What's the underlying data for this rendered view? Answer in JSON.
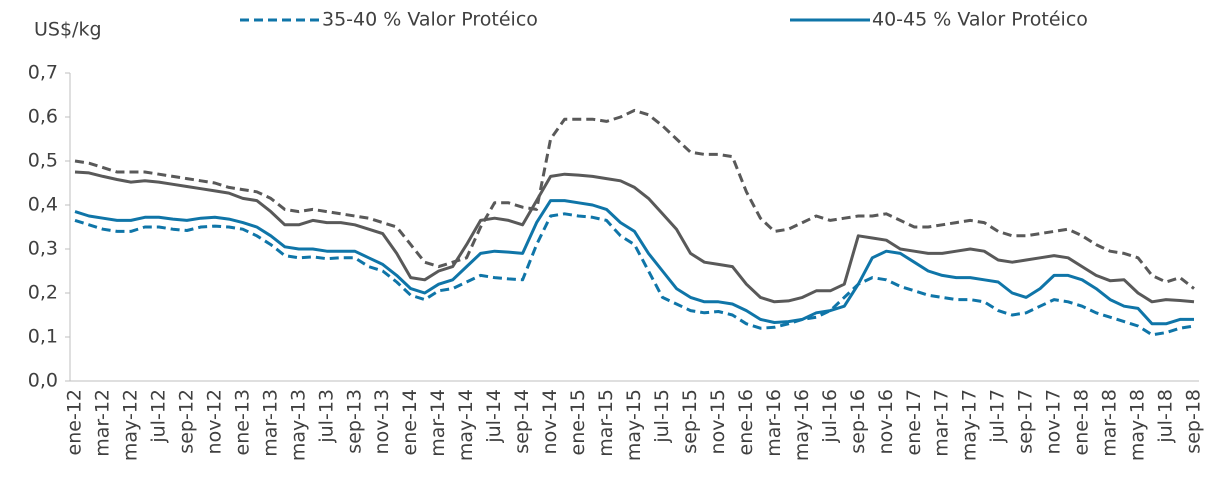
{
  "chart_data": {
    "type": "line",
    "y_label": "US$/kg",
    "legend": "top",
    "categories": [
      "ene-12",
      null,
      "mar-12",
      null,
      "may-12",
      null,
      "jul-12",
      null,
      "sep-12",
      null,
      "nov-12",
      null,
      "ene-13",
      null,
      "mar-13",
      null,
      "may-13",
      null,
      "jul-13",
      null,
      "sep-13",
      null,
      "nov-13",
      null,
      "ene-14",
      null,
      "mar-14",
      null,
      "may-14",
      null,
      "jul-14",
      null,
      "sep-14",
      null,
      "nov-14",
      null,
      "ene-15",
      null,
      "mar-15",
      null,
      "may-15",
      null,
      "jul-15",
      null,
      "sep-15",
      null,
      "nov-15",
      null,
      "ene-16",
      null,
      "mar-16",
      null,
      "may-16",
      null,
      "jul-16",
      null,
      "sep-16",
      null,
      "nov-16",
      null,
      "ene-17",
      null,
      "mar-17",
      null,
      "may-17",
      null,
      "jul-17",
      null,
      "sep-17",
      null,
      "nov-17",
      null,
      "ene-18",
      null,
      "mar-18",
      null,
      "may-18",
      null,
      "jul-18",
      null,
      "sep-18"
    ],
    "series": [
      {
        "color": "#595959",
        "dashed": true,
        "values": [
          0.5,
          0.495,
          0.485,
          0.475,
          0.475,
          0.475,
          0.47,
          0.465,
          0.46,
          0.455,
          0.45,
          0.44,
          0.435,
          0.43,
          0.415,
          0.39,
          0.385,
          0.39,
          0.385,
          0.38,
          0.375,
          0.37,
          0.36,
          0.35,
          0.31,
          0.27,
          0.26,
          0.27,
          0.28,
          0.35,
          0.405,
          0.405,
          0.395,
          0.39,
          0.55,
          0.595,
          0.595,
          0.595,
          0.59,
          0.6,
          0.615,
          0.605,
          0.58,
          0.55,
          0.52,
          0.515,
          0.515,
          0.51,
          0.43,
          0.37,
          0.34,
          0.345,
          0.36,
          0.375,
          0.365,
          0.37,
          0.375,
          0.375,
          0.38,
          0.365,
          0.35,
          0.35,
          0.355,
          0.36,
          0.365,
          0.36,
          0.34,
          0.33,
          0.33,
          0.335,
          0.34,
          0.345,
          0.33,
          0.31,
          0.295,
          0.29,
          0.28,
          0.24,
          0.225,
          0.235,
          0.21
        ]
      },
      {
        "color": "#595959",
        "dashed": false,
        "values": [
          0.475,
          0.473,
          0.465,
          0.458,
          0.452,
          0.455,
          0.452,
          0.447,
          0.442,
          0.437,
          0.432,
          0.427,
          0.415,
          0.41,
          0.385,
          0.355,
          0.355,
          0.365,
          0.36,
          0.36,
          0.355,
          0.345,
          0.335,
          0.29,
          0.235,
          0.23,
          0.25,
          0.26,
          0.31,
          0.365,
          0.37,
          0.365,
          0.355,
          0.41,
          0.465,
          0.47,
          0.468,
          0.465,
          0.46,
          0.455,
          0.44,
          0.415,
          0.38,
          0.345,
          0.29,
          0.27,
          0.265,
          0.26,
          0.22,
          0.19,
          0.18,
          0.182,
          0.19,
          0.205,
          0.205,
          0.22,
          0.33,
          0.325,
          0.32,
          0.3,
          0.295,
          0.29,
          0.29,
          0.295,
          0.3,
          0.295,
          0.275,
          0.27,
          0.275,
          0.28,
          0.285,
          0.28,
          0.26,
          0.24,
          0.228,
          0.23,
          0.2,
          0.18,
          0.185,
          0.183,
          0.18
        ]
      },
      {
        "name": "35-40 % Valor Protéico",
        "color": "#0f75a8",
        "dashed": true,
        "values": [
          0.365,
          0.355,
          0.345,
          0.34,
          0.34,
          0.35,
          0.35,
          0.345,
          0.342,
          0.35,
          0.352,
          0.35,
          0.345,
          0.33,
          0.31,
          0.285,
          0.28,
          0.282,
          0.278,
          0.28,
          0.28,
          0.26,
          0.25,
          0.225,
          0.195,
          0.185,
          0.205,
          0.21,
          0.225,
          0.24,
          0.235,
          0.232,
          0.23,
          0.31,
          0.375,
          0.38,
          0.375,
          0.372,
          0.365,
          0.33,
          0.31,
          0.25,
          0.19,
          0.175,
          0.16,
          0.155,
          0.158,
          0.15,
          0.13,
          0.12,
          0.122,
          0.13,
          0.14,
          0.145,
          0.16,
          0.19,
          0.22,
          0.235,
          0.23,
          0.215,
          0.205,
          0.195,
          0.19,
          0.185,
          0.185,
          0.18,
          0.16,
          0.15,
          0.155,
          0.17,
          0.185,
          0.18,
          0.17,
          0.155,
          0.145,
          0.135,
          0.125,
          0.105,
          0.11,
          0.12,
          0.125
        ]
      },
      {
        "name": "40-45 % Valor Protéico",
        "color": "#0f75a8",
        "dashed": false,
        "values": [
          0.385,
          0.375,
          0.37,
          0.365,
          0.365,
          0.372,
          0.372,
          0.368,
          0.365,
          0.37,
          0.372,
          0.368,
          0.36,
          0.35,
          0.33,
          0.305,
          0.3,
          0.3,
          0.295,
          0.295,
          0.295,
          0.28,
          0.265,
          0.24,
          0.21,
          0.2,
          0.22,
          0.23,
          0.26,
          0.29,
          0.295,
          0.293,
          0.29,
          0.36,
          0.41,
          0.41,
          0.405,
          0.4,
          0.39,
          0.36,
          0.34,
          0.29,
          0.25,
          0.21,
          0.19,
          0.18,
          0.18,
          0.175,
          0.16,
          0.14,
          0.133,
          0.135,
          0.14,
          0.155,
          0.16,
          0.17,
          0.22,
          0.28,
          0.295,
          0.29,
          0.27,
          0.25,
          0.24,
          0.235,
          0.235,
          0.23,
          0.225,
          0.2,
          0.19,
          0.21,
          0.24,
          0.24,
          0.23,
          0.21,
          0.185,
          0.17,
          0.165,
          0.13,
          0.13,
          0.14,
          0.14
        ]
      }
    ],
    "ylim": [
      0,
      0.7
    ],
    "yticks": [
      {
        "value": 0,
        "label": "0,0"
      },
      {
        "value": 0.1,
        "label": "0,1"
      },
      {
        "value": 0.2,
        "label": "0,2"
      },
      {
        "value": 0.3,
        "label": "0,3"
      },
      {
        "value": 0.4,
        "label": "0,4"
      },
      {
        "value": 0.5,
        "label": "0,5"
      },
      {
        "value": 0.6,
        "label": "0,6"
      },
      {
        "value": 0.7,
        "label": "0,7"
      }
    ]
  }
}
